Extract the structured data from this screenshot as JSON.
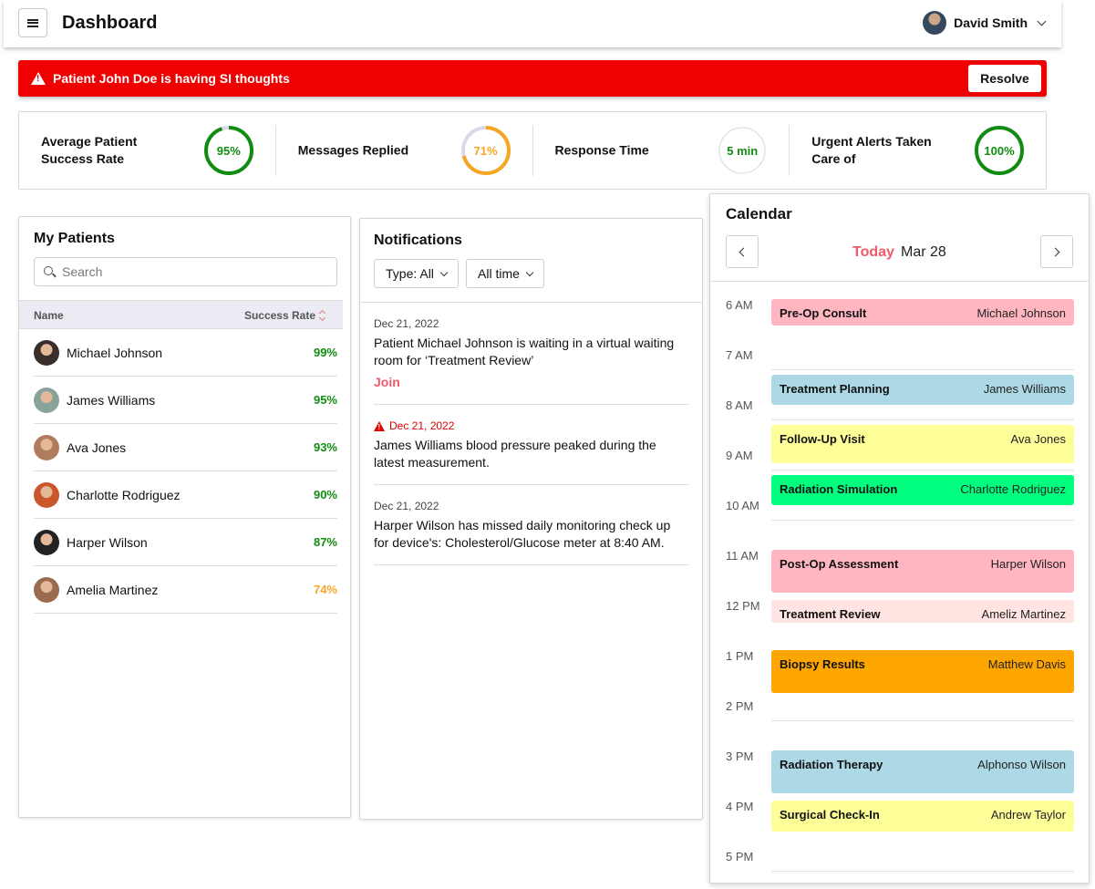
{
  "header": {
    "title": "Dashboard",
    "user_name": "David Smith"
  },
  "alert": {
    "message": "Patient John Doe is having SI thoughts",
    "button": "Resolve",
    "color": "#f00000"
  },
  "stats": [
    {
      "label": "Average Patient Success Rate",
      "value": "95%",
      "percent": 95,
      "color": "#118c11"
    },
    {
      "label": "Messages Replied",
      "value": "71%",
      "percent": 71,
      "color": "#f5a623"
    },
    {
      "label": "Response Time",
      "value": "5 min",
      "percent": 0,
      "color": "#118c11"
    },
    {
      "label": "Urgent Alerts Taken Care of",
      "value": "100%",
      "percent": 100,
      "color": "#118c11"
    }
  ],
  "patients": {
    "title": "My Patients",
    "search_placeholder": "Search",
    "col_name": "Name",
    "col_rate": "Success Rate",
    "rows": [
      {
        "name": "Michael Johnson",
        "rate": "99%",
        "color": "#118c11",
        "avatar": "#3a2e2a"
      },
      {
        "name": "James Williams",
        "rate": "95%",
        "color": "#118c11",
        "avatar": "#8aa39a"
      },
      {
        "name": "Ava Jones",
        "rate": "93%",
        "color": "#118c11",
        "avatar": "#b07c5e"
      },
      {
        "name": "Charlotte Rodriguez",
        "rate": "90%",
        "color": "#118c11",
        "avatar": "#c9572b"
      },
      {
        "name": "Harper Wilson",
        "rate": "87%",
        "color": "#118c11",
        "avatar": "#222222"
      },
      {
        "name": "Amelia Martinez",
        "rate": "74%",
        "color": "#f5a623",
        "avatar": "#9a6b4f"
      }
    ]
  },
  "notifications": {
    "title": "Notifications",
    "filter_type": "Type: All",
    "filter_time": "All time",
    "items": [
      {
        "date": "Dec 21, 2022",
        "text": "Patient Michael Johnson is waiting in a virtual waiting room for ‘Treatment Review’",
        "action": "Join",
        "urgent": false
      },
      {
        "date": "Dec 21, 2022",
        "text": "James Williams blood pressure peaked during the latest measurement.",
        "action": "",
        "urgent": true
      },
      {
        "date": "Dec 21, 2022",
        "text": "Harper Wilson has missed daily monitoring check up for device's: Cholesterol/Glucose meter at 8:40 AM.",
        "action": "",
        "urgent": false
      }
    ]
  },
  "calendar": {
    "title": "Calendar",
    "today_label": "Today",
    "date_label": "Mar 28",
    "hours": [
      "6 AM",
      "7 AM",
      "8 AM",
      "9 AM",
      "10 AM",
      "11 AM",
      "12 PM",
      "1 PM",
      "2 PM",
      "3 PM",
      "4 PM",
      "5 PM"
    ],
    "events": [
      {
        "title": "Pre-Op Consult",
        "person": "Michael Johnson",
        "start": "6:00",
        "end": "6:35",
        "color": "#ffb6c1"
      },
      {
        "title": "Treatment Planning",
        "person": "James Williams",
        "start": "7:30",
        "end": "8:10",
        "color": "#add8e6"
      },
      {
        "title": "Follow-Up Visit",
        "person": "Ava Jones",
        "start": "8:30",
        "end": "9:20",
        "color": "#ffff99"
      },
      {
        "title": "Radiation Simulation",
        "person": "Charlotte Rodriguez",
        "start": "9:30",
        "end": "10:10",
        "color": "#00ff7f"
      },
      {
        "title": "Post-Op Assessment",
        "person": "Harper Wilson",
        "start": "11:00",
        "end": "11:55",
        "color": "#ffb6c1"
      },
      {
        "title": "Treatment Review",
        "person": "Ameliz Martinez",
        "start": "12:00",
        "end": "12:30",
        "color": "#ffe4e1"
      },
      {
        "title": "Biopsy Results",
        "person": "Matthew Davis",
        "start": "13:00",
        "end": "13:55",
        "color": "#ffa500"
      },
      {
        "title": "Radiation Therapy",
        "person": "Alphonso Wilson",
        "start": "15:00",
        "end": "15:55",
        "color": "#add8e6"
      },
      {
        "title": "Surgical Check-In",
        "person": "Andrew Taylor",
        "start": "16:00",
        "end": "16:40",
        "color": "#ffff99"
      }
    ]
  }
}
